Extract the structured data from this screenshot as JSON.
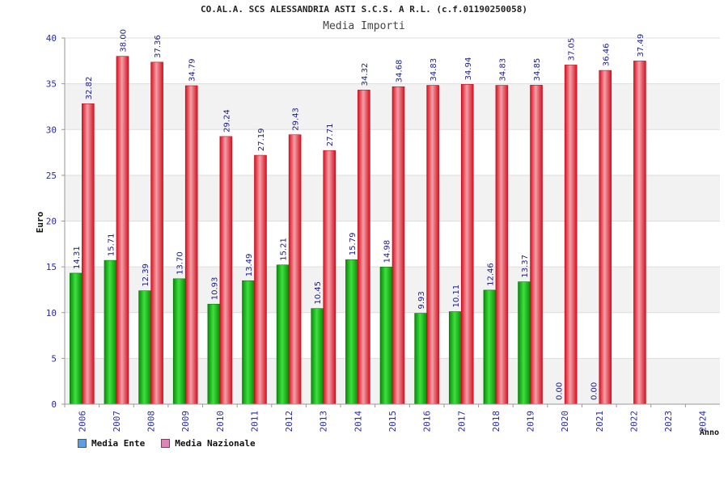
{
  "chart_data": {
    "type": "bar",
    "title": "CO.AL.A. SCS ALESSANDRIA ASTI S.C.S. A R.L. (c.f.01190250058)",
    "subtitle": "Media Importi",
    "xlabel": "Anno",
    "ylabel": "Euro",
    "ylim": [
      0,
      40
    ],
    "yticks": [
      0,
      5,
      10,
      15,
      20,
      25,
      30,
      35,
      40
    ],
    "grid": true,
    "categories": [
      "2006",
      "2007",
      "2008",
      "2009",
      "2010",
      "2011",
      "2012",
      "2013",
      "2014",
      "2015",
      "2016",
      "2017",
      "2018",
      "2019",
      "2020",
      "2021",
      "2022",
      "2023",
      "2024"
    ],
    "series": [
      {
        "name": "Media Ente",
        "color": "#1ec01e",
        "legend_color": "#5aa0e6",
        "values": [
          14.31,
          15.71,
          12.39,
          13.7,
          10.93,
          13.49,
          15.21,
          10.45,
          15.79,
          14.98,
          9.93,
          10.11,
          12.46,
          13.37,
          0.0,
          0.0,
          null,
          null,
          null
        ],
        "labels": [
          "14.31",
          "15.71",
          "12.39",
          "13.70",
          "10.93",
          "13.49",
          "15.21",
          "10.45",
          "15.79",
          "14.98",
          "9.93",
          "10.11",
          "12.46",
          "13.37",
          "0.00",
          "0.00",
          "",
          "",
          ""
        ]
      },
      {
        "name": "Media Nazionale",
        "color": "#e8283a",
        "legend_color": "#e083b8",
        "values": [
          32.82,
          38.0,
          37.36,
          34.79,
          29.24,
          27.19,
          29.43,
          27.71,
          34.32,
          34.68,
          34.83,
          34.94,
          34.83,
          34.85,
          37.05,
          36.46,
          37.49,
          null,
          null
        ],
        "labels": [
          "32.82",
          "38.00",
          "37.36",
          "34.79",
          "29.24",
          "27.19",
          "29.43",
          "27.71",
          "34.32",
          "34.68",
          "34.83",
          "34.94",
          "34.83",
          "34.85",
          "37.05",
          "36.46",
          "37.49",
          "",
          ""
        ]
      }
    ]
  }
}
